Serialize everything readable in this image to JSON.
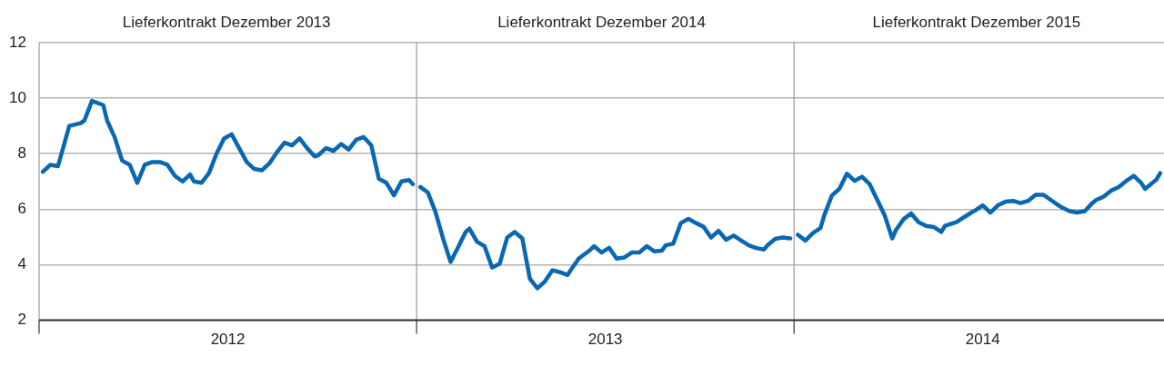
{
  "chart_data": {
    "type": "line",
    "series": [
      {
        "color": "#0a67b2",
        "x": [
          2012.01,
          2012.03,
          2012.05,
          2012.08,
          2012.11,
          2012.12,
          2012.14,
          2012.17,
          2012.18,
          2012.2,
          2012.22,
          2012.24,
          2012.26,
          2012.28,
          2012.3,
          2012.32,
          2012.34,
          2012.36,
          2012.38,
          2012.4,
          2012.41,
          2012.43,
          2012.45,
          2012.47,
          2012.49,
          2012.51,
          2012.53,
          2012.55,
          2012.57,
          2012.59,
          2012.61,
          2012.63,
          2012.65,
          2012.67,
          2012.69,
          2012.71,
          2012.73,
          2012.74,
          2012.76,
          2012.78,
          2012.8,
          2012.82,
          2012.84,
          2012.86,
          2012.88,
          2012.9,
          2012.92,
          2012.94,
          2012.96,
          2012.98,
          2012.99
        ],
        "values": [
          7.35,
          7.6,
          7.55,
          9.0,
          9.1,
          9.2,
          9.9,
          9.75,
          9.2,
          8.6,
          7.75,
          7.6,
          6.95,
          7.6,
          7.7,
          7.7,
          7.6,
          7.2,
          7.0,
          7.25,
          7.0,
          6.95,
          7.3,
          8.0,
          8.55,
          8.7,
          8.2,
          7.7,
          7.45,
          7.4,
          7.65,
          8.05,
          8.4,
          8.3,
          8.55,
          8.2,
          7.9,
          7.95,
          8.2,
          8.1,
          8.35,
          8.15,
          8.5,
          8.6,
          8.3,
          7.1,
          6.95,
          6.5,
          7.0,
          7.05,
          6.9
        ]
      },
      {
        "color": "#0a67b2",
        "x": [
          2013.01,
          2013.03,
          2013.05,
          2013.07,
          2013.09,
          2013.11,
          2013.13,
          2013.14,
          2013.16,
          2013.18,
          2013.2,
          2013.22,
          2013.24,
          2013.26,
          2013.28,
          2013.3,
          2013.32,
          2013.34,
          2013.36,
          2013.38,
          2013.4,
          2013.41,
          2013.43,
          2013.46,
          2013.47,
          2013.49,
          2013.51,
          2013.53,
          2013.55,
          2013.57,
          2013.59,
          2013.61,
          2013.63,
          2013.65,
          2013.66,
          2013.68,
          2013.7,
          2013.72,
          2013.74,
          2013.76,
          2013.78,
          2013.8,
          2013.82,
          2013.84,
          2013.86,
          2013.88,
          2013.9,
          2013.92,
          2013.93,
          2013.95,
          2013.97,
          2013.99
        ],
        "values": [
          6.8,
          6.6,
          5.9,
          4.95,
          4.1,
          4.63,
          5.18,
          5.3,
          4.83,
          4.67,
          3.9,
          4.03,
          4.98,
          5.18,
          4.95,
          3.5,
          3.15,
          3.4,
          3.8,
          3.73,
          3.63,
          3.84,
          4.23,
          4.53,
          4.67,
          4.44,
          4.61,
          4.22,
          4.26,
          4.44,
          4.44,
          4.67,
          4.48,
          4.51,
          4.7,
          4.76,
          5.5,
          5.65,
          5.5,
          5.37,
          4.98,
          5.22,
          4.9,
          5.05,
          4.87,
          4.7,
          4.6,
          4.55,
          4.7,
          4.93,
          4.98,
          4.95
        ]
      },
      {
        "color": "#0a67b2",
        "x": [
          2014.01,
          2014.03,
          2014.05,
          2014.07,
          2014.08,
          2014.1,
          2014.12,
          2014.14,
          2014.16,
          2014.18,
          2014.2,
          2014.22,
          2014.24,
          2014.26,
          2014.27,
          2014.29,
          2014.31,
          2014.33,
          2014.35,
          2014.37,
          2014.39,
          2014.4,
          2014.43,
          2014.45,
          2014.47,
          2014.48,
          2014.5,
          2014.52,
          2014.54,
          2014.56,
          2014.58,
          2014.6,
          2014.62,
          2014.64,
          2014.66,
          2014.67,
          2014.69,
          2014.71,
          2014.73,
          2014.75,
          2014.77,
          2014.79,
          2014.8,
          2014.82,
          2014.84,
          2014.86,
          2014.88,
          2014.9,
          2014.92,
          2014.93,
          2014.96,
          2014.97
        ],
        "values": [
          5.08,
          4.87,
          5.14,
          5.32,
          5.78,
          6.49,
          6.73,
          7.28,
          7.02,
          7.17,
          6.91,
          6.35,
          5.78,
          4.95,
          5.25,
          5.64,
          5.85,
          5.53,
          5.4,
          5.36,
          5.18,
          5.4,
          5.53,
          5.71,
          5.88,
          5.96,
          6.14,
          5.88,
          6.14,
          6.27,
          6.3,
          6.22,
          6.3,
          6.52,
          6.52,
          6.43,
          6.24,
          6.06,
          5.93,
          5.88,
          5.93,
          6.22,
          6.33,
          6.45,
          6.67,
          6.8,
          7.02,
          7.2,
          6.94,
          6.73,
          7.07,
          7.3
        ]
      }
    ],
    "xlim": [
      2012,
      2014.98
    ],
    "xticks": [
      {
        "value": 2012,
        "label": null
      },
      {
        "value": 2012.5,
        "label": "2012"
      },
      {
        "value": 2013,
        "label": null
      },
      {
        "value": 2013.5,
        "label": "2013"
      },
      {
        "value": 2014,
        "label": null
      },
      {
        "value": 2014.5,
        "label": "2014"
      }
    ],
    "ylim": [
      2,
      12
    ],
    "yticks": [
      2,
      4,
      6,
      8,
      10,
      12
    ],
    "ref_lines": [
      {
        "axis": "x",
        "value": 2013,
        "color": "#9a9a9a"
      },
      {
        "axis": "x",
        "value": 2014,
        "color": "#9a9a9a"
      }
    ],
    "annotations": [
      "Lieferkontrakt Dezember 2013",
      "Lieferkontrakt Dezember 2014",
      "Lieferkontrakt Dezember 2015"
    ],
    "grid": "y",
    "legend": false,
    "marker": "none",
    "line_style": "solid"
  }
}
